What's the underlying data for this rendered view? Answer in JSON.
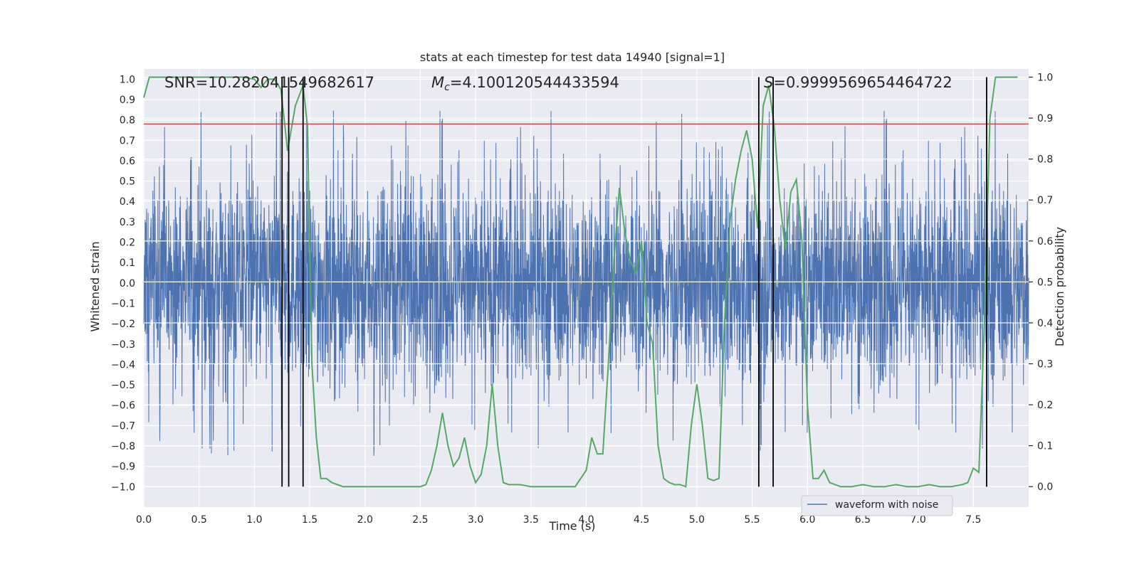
{
  "chart_data": {
    "type": "line",
    "title": "stats at each timestep for test data 14940 [signal=1]",
    "xlabel": "Time (s)",
    "ylabel_left": "Whitened strain",
    "ylabel_right": "Detection probability",
    "xlim": [
      0.0,
      8.0
    ],
    "ylim_left": [
      -1.1,
      1.05
    ],
    "ylim_right": [
      -0.05,
      1.02
    ],
    "x_ticks": [
      0.0,
      0.5,
      1.0,
      1.5,
      2.0,
      2.5,
      3.0,
      3.5,
      4.0,
      4.5,
      5.0,
      5.5,
      6.0,
      6.5,
      7.0,
      7.5
    ],
    "x_tick_labels": [
      "0.0",
      "0.5",
      "1.0",
      "1.5",
      "2.0",
      "2.5",
      "3.0",
      "3.5",
      "4.0",
      "4.5",
      "5.0",
      "5.5",
      "6.0",
      "6.5",
      "7.0",
      "7.5"
    ],
    "y_left_ticks": [
      1.0,
      0.9,
      0.8,
      0.7,
      0.6,
      0.5,
      0.4,
      0.3,
      0.2,
      0.1,
      0.0,
      -0.1,
      -0.2,
      -0.3,
      -0.4,
      -0.5,
      -0.6,
      -0.7,
      -0.8,
      -0.9,
      -1.0
    ],
    "y_left_tick_labels": [
      "1.0",
      "0.9",
      "0.8",
      "0.7",
      "0.6",
      "0.5",
      "0.4",
      "0.3",
      "0.2",
      "0.1",
      "0.0",
      "−0.1",
      "−0.2",
      "−0.3",
      "−0.4",
      "−0.5",
      "−0.6",
      "−0.7",
      "−0.8",
      "−0.9",
      "−1.0"
    ],
    "y_right_ticks": [
      1.0,
      0.9,
      0.8,
      0.7,
      0.6,
      0.5,
      0.4,
      0.3,
      0.2,
      0.1,
      0.0
    ],
    "y_right_tick_labels": [
      "1.0",
      "0.9",
      "0.8",
      "0.7",
      "0.6",
      "0.5",
      "0.4",
      "0.3",
      "0.2",
      "0.1",
      "0.0"
    ],
    "annotations": {
      "snr": "SNR=10.282041549682617",
      "mc_symbol": "M",
      "mc_sub": "c",
      "mc_value": "=4.100120544433594",
      "s_symbol": "S",
      "s_value": "=0.9999569654464722"
    },
    "threshold_left": 0.78,
    "vertical_lines_x": [
      1.25,
      1.31,
      1.44,
      5.56,
      5.69,
      7.62
    ],
    "waveform": {
      "name": "waveform with noise",
      "color": "#4c72b0",
      "x_range": [
        0.0,
        8.0
      ],
      "sample_rate": 2048,
      "amplitude_envelope": [
        -0.42,
        0.42
      ],
      "peak_max": 0.97,
      "peak_min": -1.0
    },
    "probability": {
      "color": "#55a868",
      "x": [
        0.0,
        0.05,
        0.1,
        0.2,
        0.3,
        0.4,
        0.5,
        0.6,
        0.7,
        0.8,
        0.9,
        1.0,
        1.06,
        1.12,
        1.18,
        1.24,
        1.3,
        1.37,
        1.44,
        1.48,
        1.52,
        1.56,
        1.6,
        1.65,
        1.7,
        1.8,
        1.9,
        2.0,
        2.1,
        2.2,
        2.3,
        2.4,
        2.5,
        2.55,
        2.6,
        2.65,
        2.7,
        2.75,
        2.8,
        2.85,
        2.9,
        2.95,
        3.0,
        3.05,
        3.1,
        3.15,
        3.2,
        3.25,
        3.3,
        3.4,
        3.5,
        3.6,
        3.7,
        3.8,
        3.9,
        4.0,
        4.05,
        4.1,
        4.15,
        4.2,
        4.25,
        4.3,
        4.35,
        4.4,
        4.45,
        4.5,
        4.55,
        4.6,
        4.65,
        4.7,
        4.75,
        4.8,
        4.85,
        4.9,
        4.95,
        5.0,
        5.05,
        5.1,
        5.15,
        5.2,
        5.25,
        5.3,
        5.35,
        5.4,
        5.45,
        5.5,
        5.55,
        5.6,
        5.65,
        5.7,
        5.75,
        5.8,
        5.85,
        5.9,
        5.95,
        6.0,
        6.05,
        6.1,
        6.15,
        6.2,
        6.25,
        6.3,
        6.4,
        6.5,
        6.6,
        6.7,
        6.8,
        6.9,
        7.0,
        7.1,
        7.2,
        7.3,
        7.4,
        7.45,
        7.5,
        7.55,
        7.6,
        7.65,
        7.7,
        7.75,
        7.8,
        7.9
      ],
      "y": [
        0.95,
        1.0,
        1.0,
        1.0,
        1.0,
        1.0,
        1.0,
        1.0,
        1.0,
        1.0,
        1.0,
        0.995,
        0.975,
        0.995,
        0.995,
        0.97,
        0.82,
        0.93,
        0.98,
        0.88,
        0.3,
        0.12,
        0.02,
        0.02,
        0.01,
        0.0,
        0.0,
        0.0,
        0.0,
        0.0,
        0.0,
        0.0,
        0.0,
        0.005,
        0.04,
        0.1,
        0.18,
        0.1,
        0.05,
        0.07,
        0.12,
        0.05,
        0.01,
        0.03,
        0.1,
        0.25,
        0.1,
        0.01,
        0.005,
        0.005,
        0.0,
        0.0,
        0.0,
        0.0,
        0.0,
        0.04,
        0.12,
        0.08,
        0.08,
        0.3,
        0.55,
        0.73,
        0.62,
        0.55,
        0.52,
        0.6,
        0.4,
        0.35,
        0.1,
        0.02,
        0.01,
        0.005,
        0.005,
        0.0,
        0.15,
        0.25,
        0.15,
        0.02,
        0.015,
        0.02,
        0.4,
        0.65,
        0.75,
        0.82,
        0.87,
        0.8,
        0.63,
        0.93,
        0.98,
        0.88,
        0.7,
        0.58,
        0.72,
        0.75,
        0.6,
        0.2,
        0.02,
        0.02,
        0.04,
        0.01,
        0.005,
        0.0,
        0.0,
        0.005,
        0.0,
        0.0,
        0.005,
        0.0,
        0.0,
        0.005,
        0.0,
        0.0,
        0.005,
        0.01,
        0.045,
        0.035,
        0.4,
        0.9,
        1.0,
        1.0,
        1.0,
        1.0
      ]
    },
    "legend": {
      "placement": "lower-center-right",
      "label": "waveform with noise"
    },
    "grid": true,
    "background_color": "#eaeaf2",
    "threshold_color": "#c44e52"
  }
}
